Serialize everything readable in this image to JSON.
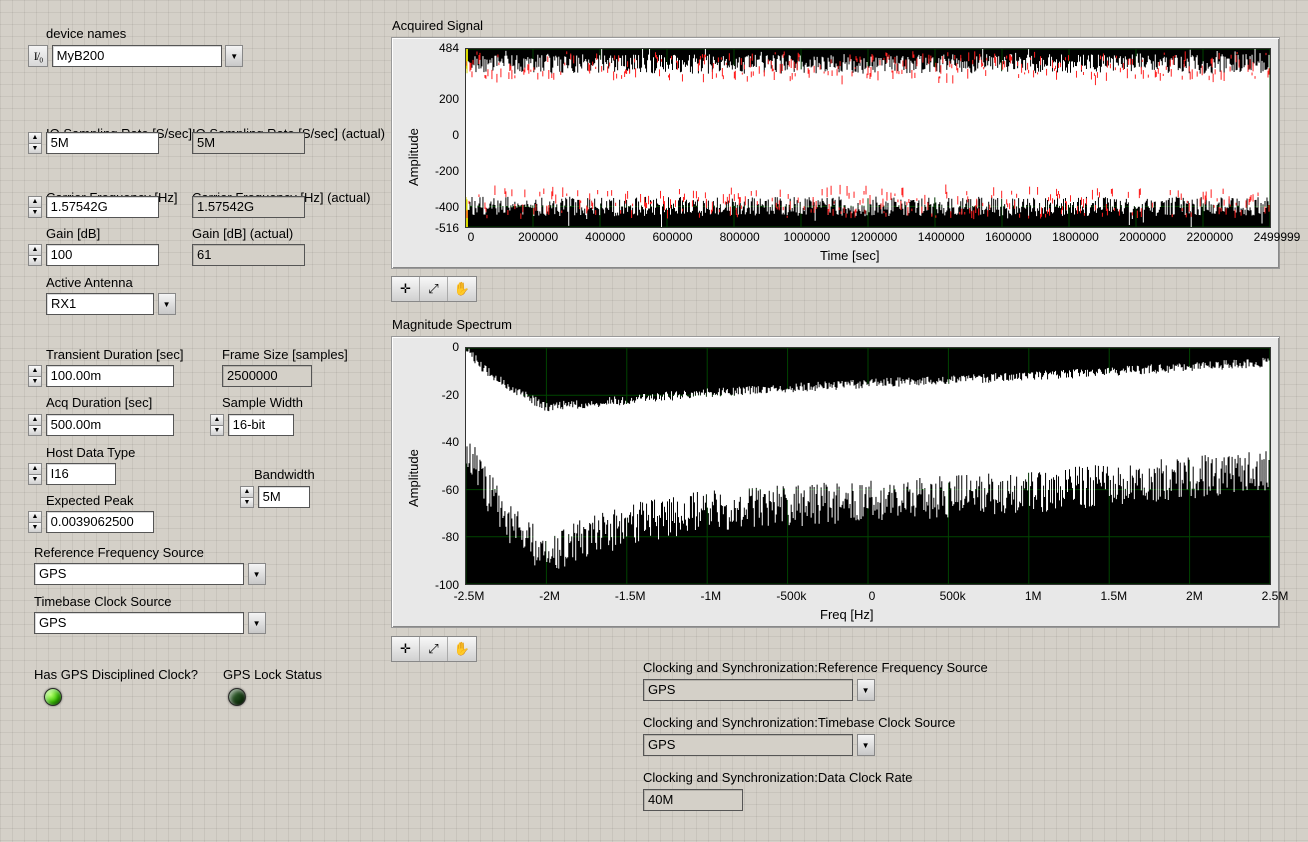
{
  "colors": {
    "panel_bg": "#d4d0c8",
    "plot_bg": "#000000",
    "grid": "#004d00",
    "signal_main": "#ffffff",
    "signal_overlay": "#ff2020",
    "spectrum_fill": "#003b14"
  },
  "left": {
    "device_names": {
      "label": "device names",
      "value": "MyB200"
    },
    "iq_rate": {
      "label": "IQ Sampling\nRate [S/sec]",
      "value": "5M"
    },
    "iq_rate_actual": {
      "label": "IQ Sampling\nRate [S/sec] (actual)",
      "value": "5M"
    },
    "carrier_freq": {
      "label": "Carrier\nFrequency [Hz]",
      "value": "1.57542G"
    },
    "carrier_freq_actual": {
      "label": "Carrier Frequency\n[Hz] (actual)",
      "value": "1.57542G"
    },
    "gain": {
      "label": "Gain [dB]",
      "value": "100"
    },
    "gain_actual": {
      "label": "Gain [dB] (actual)",
      "value": "61"
    },
    "active_antenna": {
      "label": "Active Antenna",
      "value": "RX1"
    },
    "transient_dur": {
      "label": "Transient Duration [sec]",
      "value": "100.00m"
    },
    "frame_size": {
      "label": "Frame Size [samples]",
      "value": "2500000"
    },
    "acq_duration": {
      "label": "Acq Duration [sec]",
      "value": "500.00m"
    },
    "sample_width": {
      "label": "Sample Width",
      "value": "16-bit"
    },
    "host_data_type": {
      "label": "Host Data Type",
      "value": "I16"
    },
    "bandwidth": {
      "label": "Bandwidth",
      "value": "5M"
    },
    "expected_peak": {
      "label": "Expected Peak",
      "value": "0.0039062500"
    },
    "ref_freq_src": {
      "label": "Reference Frequency Source",
      "value": "GPS"
    },
    "timebase_src": {
      "label": "Timebase Clock Source",
      "value": "GPS"
    },
    "has_gps_clock": {
      "label": "Has GPS Disciplined Clock?",
      "on": true
    },
    "gps_lock": {
      "label": "GPS Lock Status",
      "on": false
    }
  },
  "signal_chart": {
    "title": "Acquired Signal",
    "ylabel": "Amplitude",
    "xlabel": "Time [sec]",
    "ylim": [
      -516,
      484
    ],
    "yticks": [
      484,
      200,
      0,
      -200,
      -400,
      -516
    ],
    "xlim": [
      0,
      2499999
    ],
    "xticks": [
      0,
      200000,
      400000,
      600000,
      800000,
      1000000,
      1200000,
      1400000,
      1600000,
      1800000,
      2000000,
      2200000,
      2499999
    ],
    "bands": {
      "upper_center": 400,
      "lower_center": -400,
      "band_half": 55
    },
    "grid_color": "#004d00",
    "bg": "#000000",
    "main_color": "#ffffff",
    "overlay_color": "#ff2020"
  },
  "spectrum_chart": {
    "title": "Magnitude Spectrum",
    "ylabel": "Amplitude",
    "xlabel": "Freq [Hz]",
    "ylim": [
      -100,
      0
    ],
    "yticks": [
      0,
      -20,
      -40,
      -60,
      -80,
      -100
    ],
    "xlim": [
      -2.5,
      2.5
    ],
    "xticks": [
      "-2.5M",
      "-2M",
      "-1.5M",
      "-1M",
      "-500k",
      "0",
      "500k",
      "1M",
      "1.5M",
      "2M",
      "2.5M"
    ],
    "upper_envelope": [
      [
        -2.5,
        0
      ],
      [
        -2.4,
        -8
      ],
      [
        -2.2,
        -18
      ],
      [
        -2.0,
        -25
      ],
      [
        -1.5,
        -22
      ],
      [
        -1.0,
        -19
      ],
      [
        0,
        -15
      ],
      [
        1.0,
        -12
      ],
      [
        2.0,
        -8
      ],
      [
        2.5,
        -6
      ]
    ],
    "lower_envelope": [
      [
        -2.5,
        -45
      ],
      [
        -2.4,
        -60
      ],
      [
        -2.2,
        -80
      ],
      [
        -2.0,
        -90
      ],
      [
        -1.5,
        -78
      ],
      [
        -1.0,
        -72
      ],
      [
        0,
        -68
      ],
      [
        1.0,
        -64
      ],
      [
        2.0,
        -58
      ],
      [
        2.5,
        -55
      ]
    ],
    "grid_color": "#004d00",
    "bg": "#000000",
    "fill_color": "#ffffff"
  },
  "sync": {
    "ref_src": {
      "label": "Clocking and Synchronization:Reference Frequency Source",
      "value": "GPS"
    },
    "timebase": {
      "label": "Clocking and Synchronization:Timebase Clock Source",
      "value": "GPS"
    },
    "data_clock": {
      "label": "Clocking and Synchronization:Data Clock Rate",
      "value": "40M"
    }
  },
  "toolbar": {
    "cross": "✛",
    "zoom": "⤢",
    "hand": "✋"
  }
}
